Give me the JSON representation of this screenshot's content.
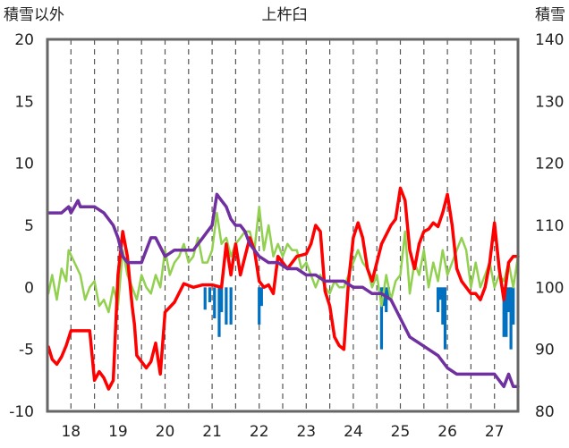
{
  "chart_data": {
    "type": "line",
    "title": "上杵臼",
    "ylabel_left": "積雪以外",
    "ylabel_right": "積雪",
    "x_categories": [
      "18",
      "19",
      "20",
      "21",
      "22",
      "23",
      "24",
      "25",
      "26",
      "27"
    ],
    "x_range": [
      17.5,
      27.5
    ],
    "ylim_left": [
      -10,
      20
    ],
    "ylim_right": [
      80,
      140
    ],
    "yticks_left": [
      "20",
      "15",
      "10",
      "5",
      "0",
      "-5",
      "-10"
    ],
    "yticks_right": [
      "140",
      "130",
      "120",
      "110",
      "100",
      "90",
      "80"
    ],
    "grid": "vertical-dashed",
    "colors": {
      "temperature": "#ff0000",
      "snow_depth": "#7030a0",
      "wind": "#92d050",
      "precipitation": "#0070c0"
    },
    "series": [
      {
        "key": "temperature",
        "axis": "left",
        "x": [
          17.52,
          17.6,
          17.7,
          17.8,
          17.9,
          18.0,
          18.4,
          18.5,
          18.6,
          18.7,
          18.8,
          18.9,
          19.0,
          19.1,
          19.2,
          19.3,
          19.35,
          19.4,
          19.5,
          19.6,
          19.7,
          19.8,
          19.9,
          20.0,
          20.2,
          20.4,
          20.6,
          20.8,
          21.0,
          21.2,
          21.3,
          21.4,
          21.5,
          21.6,
          21.7,
          21.8,
          21.9,
          22.0,
          22.1,
          22.2,
          22.3,
          22.4,
          22.6,
          22.8,
          23.0,
          23.1,
          23.2,
          23.3,
          23.4,
          23.5,
          23.6,
          23.7,
          23.8,
          23.9,
          24.0,
          24.1,
          24.2,
          24.3,
          24.4,
          24.6,
          24.8,
          24.9,
          25.0,
          25.1,
          25.2,
          25.3,
          25.4,
          25.5,
          25.6,
          25.7,
          25.8,
          25.9,
          26.0,
          26.1,
          26.2,
          26.3,
          26.4,
          26.5,
          26.6,
          26.7,
          26.8,
          26.9,
          27.0,
          27.1,
          27.2,
          27.3,
          27.4,
          27.5
        ],
        "values": [
          -4.8,
          -5.8,
          -6.2,
          -5.6,
          -4.7,
          -3.5,
          -3.5,
          -7.5,
          -6.8,
          -7.3,
          -8.2,
          -7.5,
          1.0,
          4.5,
          2.5,
          -1.5,
          -3.0,
          -5.5,
          -6.0,
          -6.5,
          -6.0,
          -4.5,
          -7.0,
          -2.0,
          -1.2,
          0.3,
          0.0,
          0.2,
          0.2,
          0.0,
          3.5,
          1.0,
          3.5,
          1.0,
          2.5,
          4.0,
          3.0,
          0.5,
          0.0,
          0.2,
          -0.5,
          2.5,
          1.5,
          2.5,
          2.7,
          3.5,
          5.0,
          4.5,
          -0.3,
          -1.5,
          -4.0,
          -4.7,
          -5.0,
          0.5,
          4.0,
          5.2,
          4.0,
          1.5,
          0.5,
          3.5,
          5.0,
          5.5,
          8.0,
          7.0,
          3.0,
          1.5,
          3.5,
          4.5,
          4.7,
          5.2,
          4.9,
          6.0,
          7.5,
          5.0,
          1.5,
          0.5,
          0.0,
          -0.5,
          -0.5,
          -1.0,
          0.0,
          2.0,
          5.2,
          1.5,
          -1.0,
          2.0,
          2.5,
          2.5
        ]
      },
      {
        "key": "snow_depth",
        "axis": "right",
        "x": [
          17.52,
          17.8,
          17.95,
          18.0,
          18.15,
          18.2,
          18.5,
          18.7,
          18.9,
          19.0,
          19.1,
          19.2,
          19.4,
          19.5,
          19.7,
          19.8,
          20.0,
          20.2,
          20.4,
          20.6,
          20.8,
          20.9,
          21.0,
          21.1,
          21.2,
          21.3,
          21.4,
          21.5,
          21.6,
          21.7,
          21.8,
          21.9,
          22.0,
          22.2,
          22.4,
          22.6,
          22.8,
          23.0,
          23.2,
          23.4,
          23.6,
          23.8,
          24.0,
          24.2,
          24.4,
          24.6,
          24.8,
          25.0,
          25.2,
          25.4,
          25.6,
          25.8,
          26.0,
          26.2,
          26.4,
          26.6,
          26.8,
          27.0,
          27.2,
          27.3,
          27.4,
          27.5
        ],
        "values": [
          112,
          112,
          113,
          112,
          114,
          113,
          113,
          112,
          110,
          108,
          105,
          104,
          104,
          104,
          108,
          108,
          105,
          106,
          106,
          106,
          108,
          109,
          110,
          115,
          114,
          113,
          111,
          110,
          110,
          109,
          107,
          106,
          105,
          104,
          104,
          103,
          103,
          102,
          102,
          101,
          101,
          101,
          100,
          100,
          99,
          99,
          98,
          95,
          92,
          91,
          90,
          89,
          87,
          86,
          86,
          86,
          86,
          86,
          84,
          86,
          84,
          84
        ]
      },
      {
        "key": "wind",
        "axis": "left",
        "x": [
          17.52,
          17.6,
          17.7,
          17.8,
          17.9,
          17.95,
          18.2,
          18.3,
          18.4,
          18.5,
          18.6,
          18.7,
          18.8,
          18.9,
          19.0,
          19.1,
          19.2,
          19.3,
          19.4,
          19.5,
          19.6,
          19.7,
          19.8,
          19.9,
          20.0,
          20.1,
          20.2,
          20.3,
          20.4,
          20.5,
          20.6,
          20.7,
          20.8,
          20.9,
          21.0,
          21.1,
          21.2,
          21.3,
          21.4,
          21.5,
          21.6,
          21.7,
          21.8,
          21.9,
          22.0,
          22.1,
          22.2,
          22.3,
          22.4,
          22.5,
          22.6,
          22.7,
          22.8,
          22.9,
          23.0,
          23.1,
          23.2,
          23.3,
          23.4,
          23.5,
          23.6,
          23.7,
          23.8,
          23.9,
          24.0,
          24.1,
          24.2,
          24.3,
          24.4,
          24.5,
          24.6,
          24.7,
          24.8,
          24.9,
          25.0,
          25.1,
          25.2,
          25.3,
          25.4,
          25.5,
          25.6,
          25.7,
          25.8,
          25.9,
          26.0,
          26.1,
          26.2,
          26.3,
          26.4,
          26.5,
          26.6,
          26.7,
          26.8,
          26.9,
          27.0,
          27.1,
          27.2,
          27.3,
          27.4,
          27.5
        ],
        "values": [
          -0.5,
          1.0,
          -1.0,
          1.5,
          0.5,
          3.0,
          1.0,
          -1.0,
          0.0,
          0.5,
          -1.5,
          -1.0,
          -2.0,
          0.0,
          -1.5,
          3.0,
          1.0,
          0.0,
          -1.0,
          1.0,
          0.0,
          -0.5,
          1.0,
          0.0,
          3.0,
          1.0,
          2.0,
          2.5,
          3.5,
          2.0,
          2.5,
          4.0,
          2.0,
          2.0,
          3.0,
          6.0,
          3.5,
          4.0,
          2.5,
          3.5,
          4.0,
          4.5,
          4.5,
          3.0,
          6.5,
          3.0,
          5.0,
          2.5,
          3.5,
          2.5,
          3.5,
          3.0,
          3.0,
          1.5,
          2.0,
          1.0,
          0.0,
          1.0,
          0.0,
          -0.5,
          0.5,
          0.0,
          0.0,
          1.0,
          2.0,
          3.0,
          2.0,
          1.5,
          0.0,
          1.0,
          -1.5,
          1.0,
          -1.0,
          0.5,
          1.0,
          4.5,
          -0.5,
          2.0,
          1.0,
          3.0,
          0.0,
          2.0,
          0.5,
          3.0,
          1.0,
          2.0,
          3.0,
          4.0,
          3.0,
          0.0,
          2.0,
          0.0,
          1.0,
          2.0,
          0.0,
          1.0,
          0.5,
          2.0,
          0.0,
          2.5
        ]
      },
      {
        "key": "precipitation",
        "axis": "left",
        "style": "bars-down",
        "x": [
          20.85,
          20.95,
          21.05,
          21.15,
          21.2,
          21.3,
          21.4,
          22.0,
          22.05,
          24.6,
          24.65,
          24.7,
          24.75,
          25.8,
          25.85,
          25.9,
          25.95,
          27.2,
          27.25,
          27.3,
          27.35,
          27.4
        ],
        "values": [
          -1.8,
          -1.2,
          -2.5,
          -4.0,
          -2.0,
          -3.0,
          -3.0,
          -3.0,
          -1.5,
          -5.0,
          -1.5,
          -2.0,
          -1.0,
          -2.0,
          -1.0,
          -3.0,
          -5.0,
          -4.0,
          -4.0,
          -2.0,
          -5.0,
          -3.0
        ]
      }
    ]
  }
}
